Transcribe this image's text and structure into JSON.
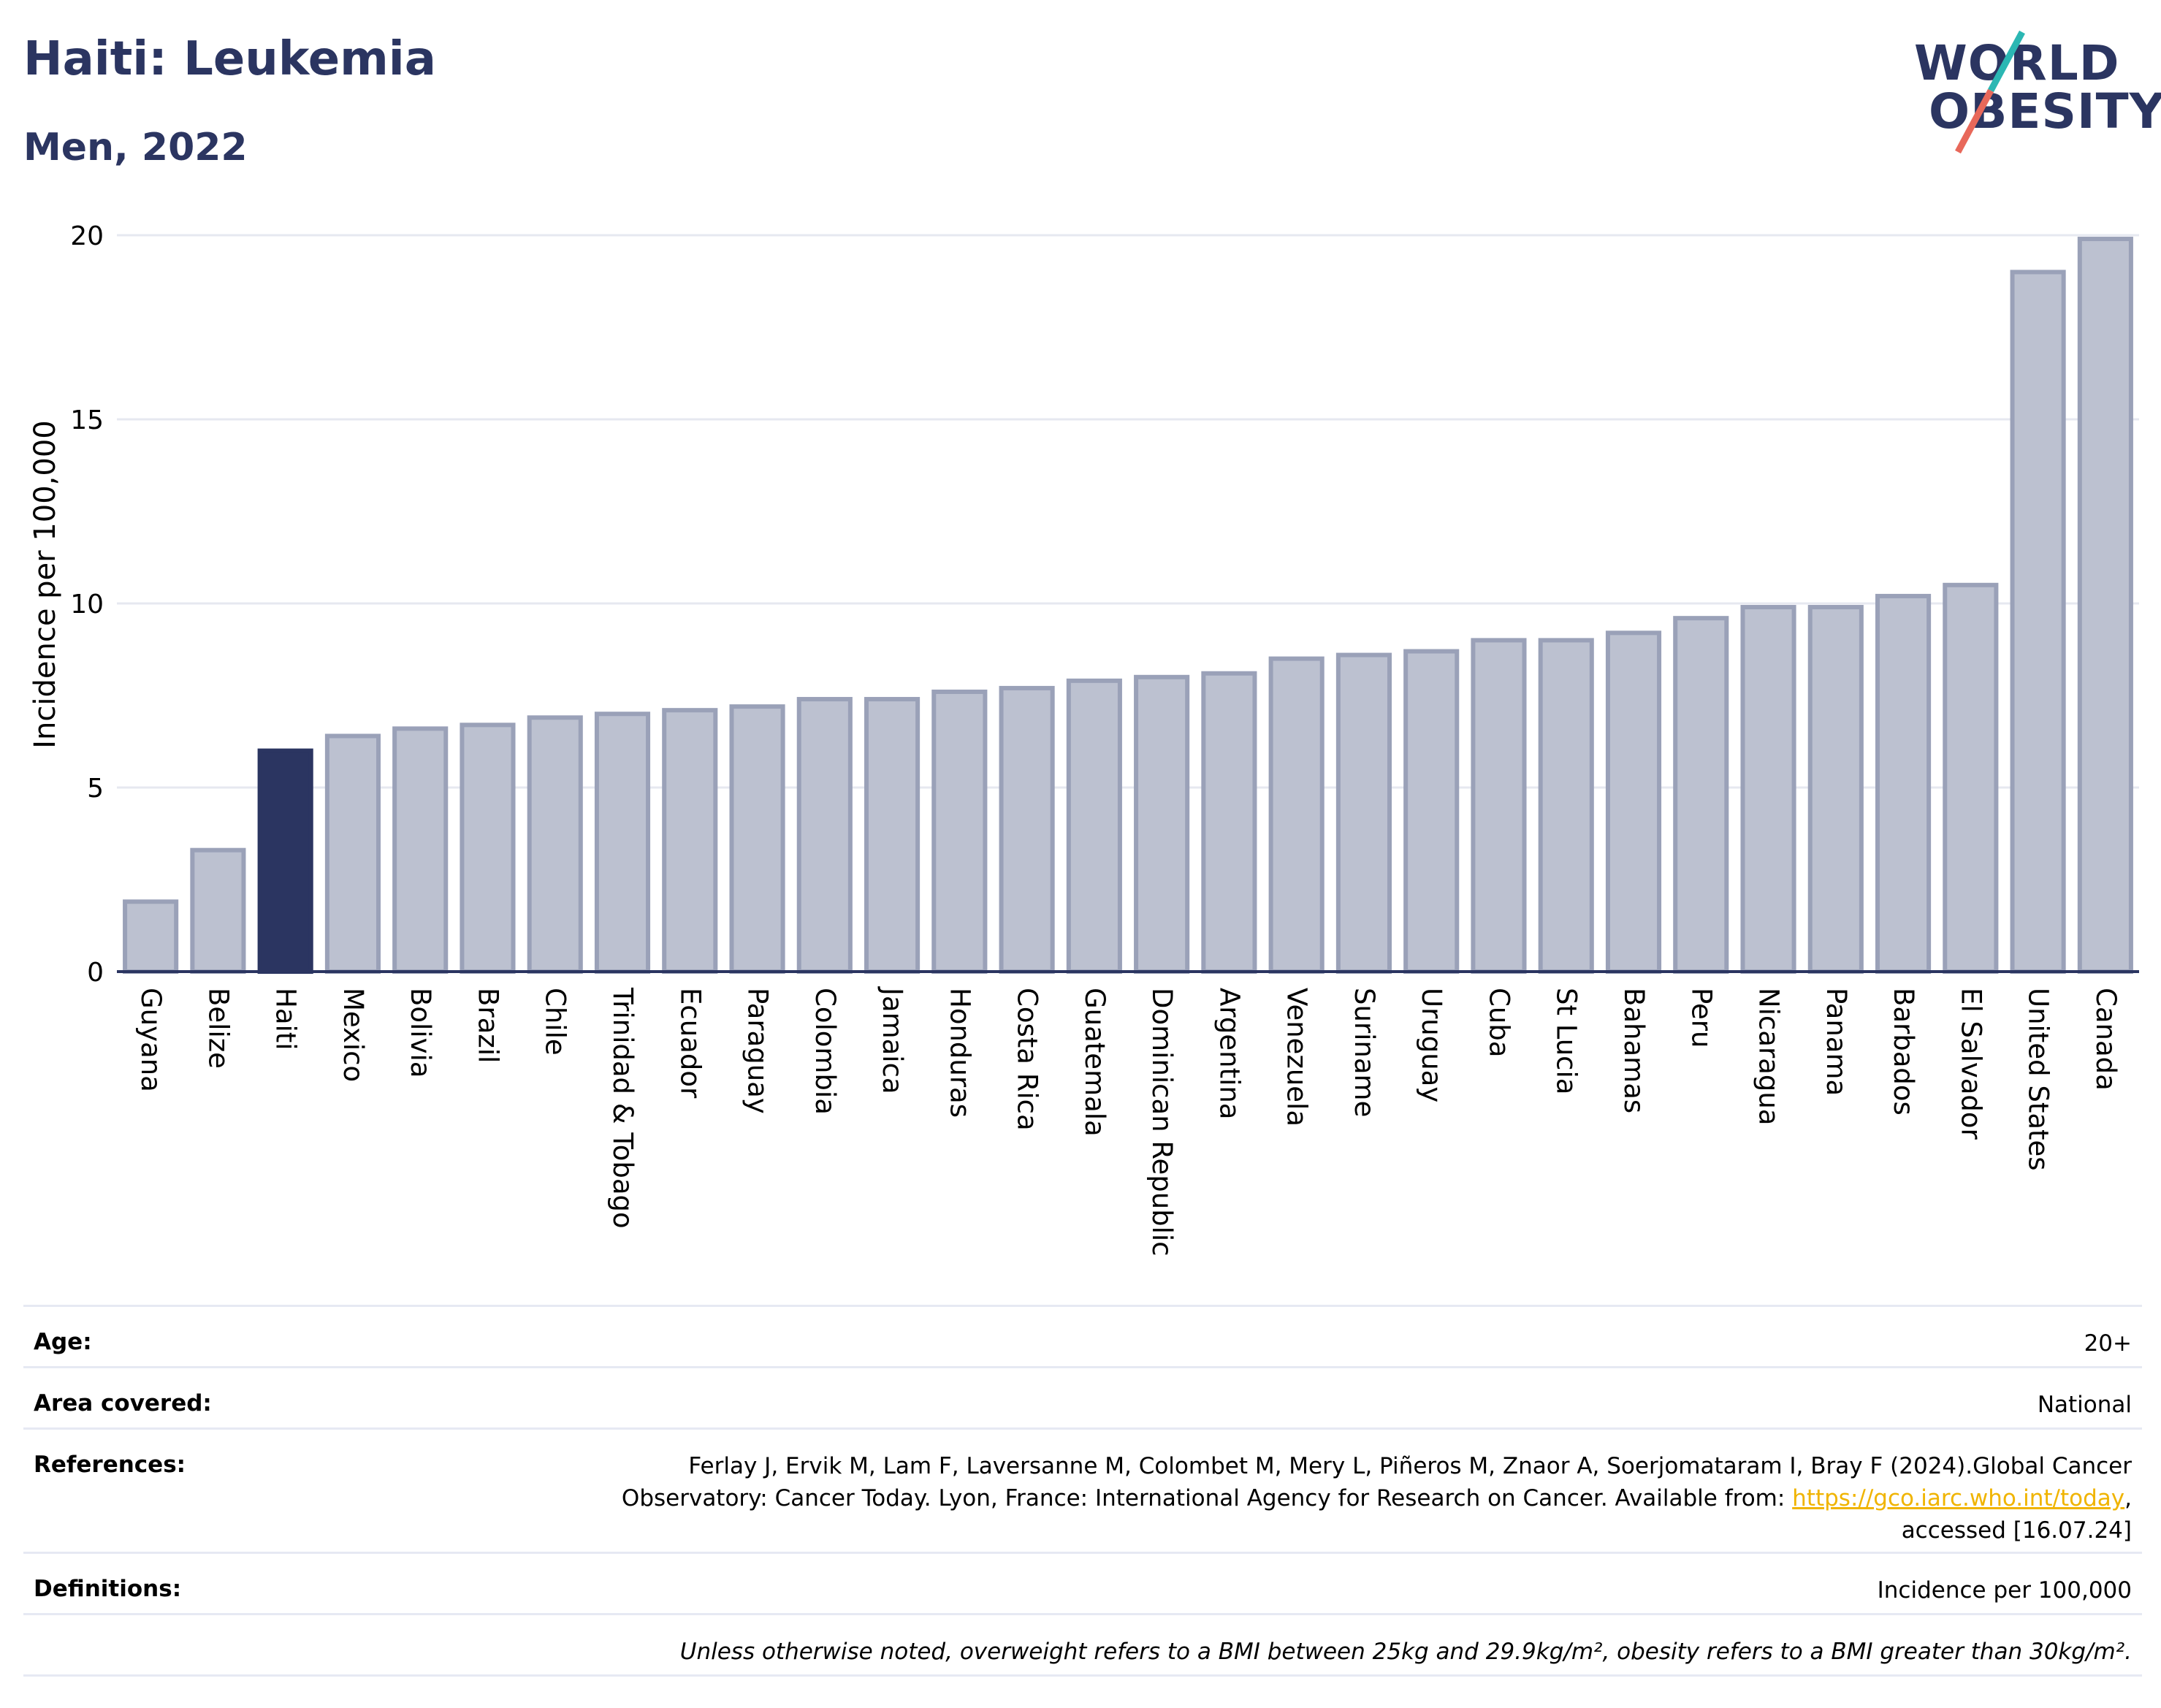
{
  "header": {
    "title": "Haiti: Leukemia",
    "subtitle": "Men, 2022"
  },
  "logo": {
    "line1": "WORLD",
    "line2": "OBESITY",
    "slash_colors": [
      "#2bb7b3",
      "#e8685a"
    ]
  },
  "colors": {
    "highlight": "#2b3561",
    "bar": "#bcc1d0",
    "bar_border": "#9aa1b8",
    "title": "#2b3561"
  },
  "chart_data": {
    "type": "bar",
    "ylabel": "Incidence per 100,000",
    "xlabel": "",
    "ylim": [
      0,
      20
    ],
    "yticks": [
      0,
      5,
      10,
      15,
      20
    ],
    "grid": true,
    "highlight_category": "Haiti",
    "categories": [
      "Guyana",
      "Belize",
      "Haiti",
      "Mexico",
      "Bolivia",
      "Brazil",
      "Chile",
      "Trinidad & Tobago",
      "Ecuador",
      "Paraguay",
      "Colombia",
      "Jamaica",
      "Honduras",
      "Costa Rica",
      "Guatemala",
      "Dominican Republic",
      "Argentina",
      "Venezuela",
      "Suriname",
      "Uruguay",
      "Cuba",
      "St Lucia",
      "Bahamas",
      "Peru",
      "Nicaragua",
      "Panama",
      "Barbados",
      "El Salvador",
      "United States",
      "Canada"
    ],
    "values": [
      1.9,
      3.3,
      6.0,
      6.4,
      6.6,
      6.7,
      6.9,
      7.0,
      7.1,
      7.2,
      7.4,
      7.4,
      7.6,
      7.7,
      7.9,
      8.0,
      8.1,
      8.5,
      8.6,
      8.7,
      9.0,
      9.0,
      9.2,
      9.6,
      9.9,
      9.9,
      10.2,
      10.5,
      19.0,
      19.9
    ]
  },
  "meta": {
    "age_label": "Age:",
    "age_value": "20+",
    "area_label": "Area covered:",
    "area_value": "National",
    "references_label": "References:",
    "references_line1": "Ferlay J, Ervik M, Lam F, Laversanne M, Colombet M, Mery L, Piñeros M, Znaor A, Soerjomataram I, Bray F (2024).Global Cancer",
    "references_line2_pre": "Observatory: Cancer Today. Lyon, France: International Agency for Research on Cancer. Available from: ",
    "references_link": "https://gco.iarc.who.int/today",
    "references_line2_post": ",",
    "references_line3": "accessed [16.07.24]",
    "definitions_label": "Definitions:",
    "definitions_value": "Incidence per 100,000",
    "note": "Unless otherwise noted, overweight refers to a BMI between 25kg and 29.9kg/m², obesity refers to a BMI greater than 30kg/m²."
  }
}
